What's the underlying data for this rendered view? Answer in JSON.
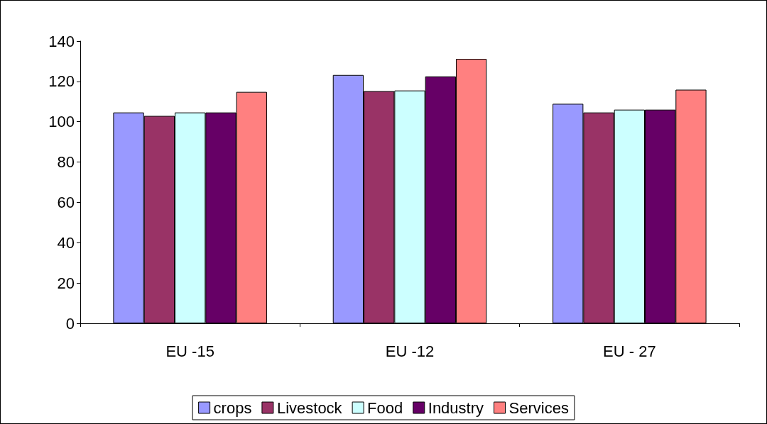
{
  "chart_data": {
    "type": "bar",
    "categories": [
      "EU -15",
      "EU -12",
      "EU - 27"
    ],
    "series": [
      {
        "name": "crops",
        "color": "#9999ff",
        "values": [
          104.6,
          123.2,
          108.9
        ]
      },
      {
        "name": "Livestock",
        "color": "#993366",
        "values": [
          102.9,
          115.2,
          104.6
        ]
      },
      {
        "name": "Food",
        "color": "#ccffff",
        "values": [
          104.6,
          115.5,
          106
        ]
      },
      {
        "name": "Industry",
        "color": "#660066",
        "values": [
          104.6,
          122.5,
          106
        ]
      },
      {
        "name": "Services",
        "color": "#ff8080",
        "values": [
          114.8,
          131.2,
          115.9
        ]
      }
    ],
    "ylim": [
      0,
      140
    ],
    "yticks": [
      0,
      20,
      40,
      60,
      80,
      100,
      120,
      140
    ],
    "grid": false,
    "legend": "bottom"
  }
}
